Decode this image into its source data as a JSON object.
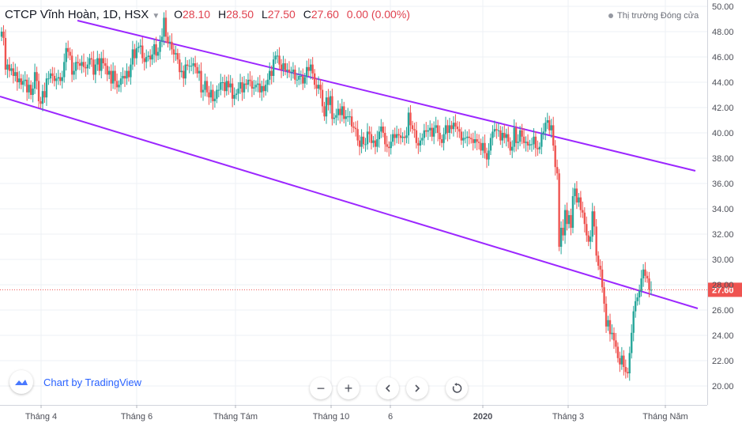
{
  "legend": {
    "symbol": "CTCP Vĩnh Hoàn, 1D, HSX",
    "open_label": "O",
    "open": "28.10",
    "high_label": "H",
    "high": "28.50",
    "low_label": "L",
    "low": "27.50",
    "close_label": "C",
    "close": "27.60",
    "change": "0.00 (0.00%)"
  },
  "market_status": "Thị trường Đóng cửa",
  "brand": {
    "text": "Chart by TradingView",
    "icon": "tradingview-cloud-icon"
  },
  "controls": [
    {
      "name": "zoom-out-button",
      "icon": "minus-icon"
    },
    {
      "name": "zoom-in-button",
      "icon": "plus-icon"
    },
    {
      "name": "scroll-left-button",
      "icon": "chevron-left-icon"
    },
    {
      "name": "scroll-right-button",
      "icon": "chevron-right-icon"
    },
    {
      "name": "reset-button",
      "icon": "reset-icon"
    }
  ],
  "colors": {
    "up": "#26a69a",
    "down": "#ef5350",
    "channel": "#9c27ff",
    "price_label_bg": "#ef5350",
    "grid": "#eef0f4"
  },
  "chart_data": {
    "type": "candlestick",
    "ylim": [
      20,
      50
    ],
    "y_ticks": [
      "50.00",
      "48.00",
      "46.00",
      "44.00",
      "42.00",
      "40.00",
      "38.00",
      "36.00",
      "34.00",
      "32.00",
      "30.00",
      "28.00",
      "26.00",
      "24.00",
      "22.00",
      "20.00"
    ],
    "x_labels": [
      "Tháng 4",
      "Tháng 6",
      "Tháng Tám",
      "Tháng 10",
      "6",
      "2020",
      "Tháng 3",
      "Tháng Năm"
    ],
    "last_price": "27.60",
    "series": [
      {
        "v": [
          48.0,
          47.5,
          45.0,
          45.4,
          44.9,
          45.1,
          44.5,
          44.8,
          44.0,
          44.3,
          43.8,
          44.1,
          44.2,
          43.2,
          43.8,
          43.0,
          43.5,
          44.8,
          44.1,
          42.5,
          42.3,
          43.3,
          42.8,
          44.3,
          44.3,
          44.7,
          44.5,
          44.1,
          44.3,
          44.4,
          44.1,
          44.4,
          45.6,
          46.7,
          46.4,
          46.1,
          44.6,
          44.9,
          45.6,
          45.5,
          45.3,
          45.6,
          45.2,
          45.1,
          45.4,
          45.9,
          45.8,
          44.6,
          45.4,
          45.9,
          44.9,
          45.9,
          45.5,
          45.3,
          44.6,
          44.9,
          43.9,
          44.9,
          44.1,
          43.6,
          43.8,
          44.3,
          44.5,
          44.3,
          44.9,
          44.4,
          45.4,
          46.6,
          45.9,
          46.7,
          46.8,
          46.9,
          45.9,
          45.6,
          46.0,
          46.1,
          45.8,
          46.2,
          47.0,
          46.1,
          46.4,
          47.2,
          47.6,
          49.1,
          47.6,
          47.1,
          47.2,
          46.6,
          46.2,
          46.3,
          45.8,
          44.8,
          44.9,
          44.3,
          45.4,
          45.3,
          45.3,
          45.3,
          45.5,
          45.2,
          44.7,
          44.9,
          43.2,
          43.4,
          44.1,
          43.2,
          42.8,
          43.4,
          42.5,
          42.7,
          43.4,
          43.4,
          44.0,
          44.0,
          43.3,
          44.1,
          43.6,
          43.9,
          42.7,
          43.0,
          43.1,
          43.5,
          44.0,
          43.2,
          43.9,
          43.8,
          44.2,
          44.1,
          43.5,
          43.6,
          43.8,
          43.9,
          43.2,
          43.7,
          43.3,
          43.8,
          44.2,
          44.9,
          44.5,
          45.8,
          46.1,
          46.1,
          45.4,
          45.0,
          45.5,
          44.9,
          45.0,
          44.8,
          44.8,
          45.0,
          44.2,
          44.2,
          44.5,
          44.5,
          43.9,
          44.4,
          45.2,
          44.9,
          45.4,
          44.7,
          43.8,
          43.5,
          43.8,
          43.4,
          42.1,
          41.3,
          42.8,
          42.2,
          42.9,
          41.1,
          41.2,
          41.4,
          41.9,
          41.4,
          42.1,
          41.1,
          41.3,
          41.3,
          41.3,
          40.5,
          40.4,
          40.3,
          39.4,
          38.9,
          39.7,
          39.1,
          39.1,
          40.1,
          39.9,
          39.2,
          39.4,
          38.9,
          39.5,
          40.1,
          40.5,
          40.0,
          39.1,
          38.9,
          38.8,
          39.3,
          39.9,
          39.6,
          39.9,
          39.8,
          39.6,
          39.7,
          39.6,
          39.8,
          41.6,
          40.6,
          40.3,
          40.2,
          39.2,
          39.0,
          39.4,
          39.6,
          40.2,
          40.1,
          40.2,
          40.4,
          39.7,
          40.4,
          40.6,
          40.0,
          39.5,
          39.2,
          39.9,
          40.6,
          40.0,
          40.6,
          40.3,
          40.8,
          40.5,
          40.3,
          40.1,
          39.4,
          39.6,
          39.6,
          39.7,
          39.6,
          39.5,
          39.2,
          39.5,
          39.3,
          39.2,
          38.6,
          39.2,
          38.4,
          37.9,
          38.6,
          39.6,
          40.1,
          40.3,
          40.2,
          40.2,
          39.4,
          40.0,
          39.6,
          39.9,
          39.3,
          38.6,
          38.9,
          40.4,
          39.2,
          39.3,
          40.2,
          39.7,
          39.2,
          39.3,
          39.0,
          39.1,
          39.1,
          39.7,
          38.8,
          38.7,
          38.9,
          39.9,
          40.1,
          40.8,
          41.0,
          40.2,
          40.6,
          39.0,
          37.3,
          36.8,
          31.0,
          32.5,
          31.9,
          33.9,
          32.8,
          33.5,
          32.5,
          35.0,
          35.6,
          34.5,
          34.9,
          33.9,
          33.7,
          32.8,
          31.9,
          31.4,
          31.8,
          33.8,
          32.6,
          30.3,
          29.5,
          29.2,
          27.8,
          26.5,
          24.7,
          25.2,
          24.1,
          24.2,
          23.6,
          23.1,
          22.2,
          21.7,
          22.4,
          21.5,
          21.1,
          21.0,
          22.6,
          24.2,
          25.9,
          26.7,
          27.0,
          27.5,
          28.5,
          29.2,
          28.7,
          28.5,
          27.6,
          27.6
        ],
        "name": "close"
      }
    ],
    "trendlines": [
      {
        "from": [
          "Tháng 4",
          48.7
        ],
        "to": [
          "Tháng Năm",
          37.0
        ],
        "label": "upper-channel"
      },
      {
        "from": [
          "Tháng 4",
          42.8
        ],
        "to": [
          "Tháng Năm",
          26.1
        ],
        "label": "lower-channel"
      }
    ]
  }
}
